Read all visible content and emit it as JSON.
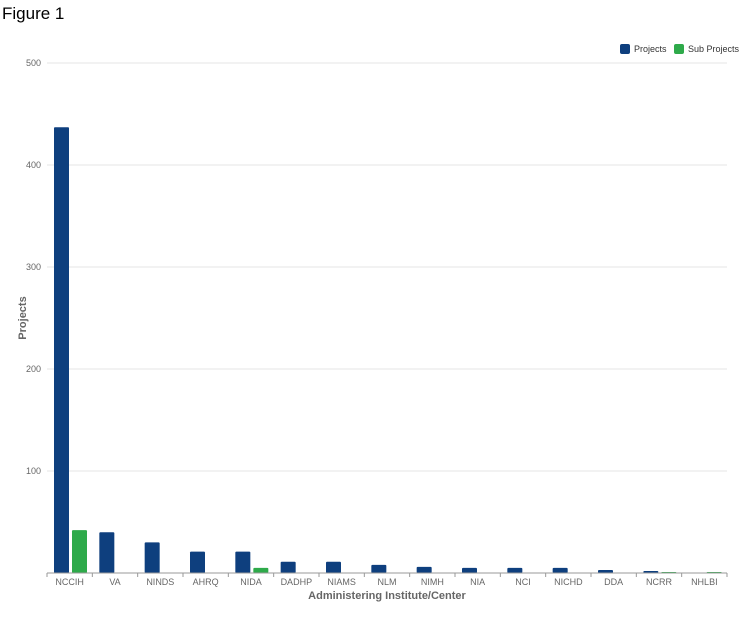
{
  "figure_label": "Figure 1",
  "chart_data": {
    "type": "bar",
    "xlabel": "Administering Institute/Center",
    "ylabel": "Projects",
    "ylim": [
      0,
      500
    ],
    "yticks": [
      0,
      100,
      200,
      300,
      400,
      500
    ],
    "grid": true,
    "legend_position": "top-right",
    "categories": [
      "NCCIH",
      "VA",
      "NINDS",
      "AHRQ",
      "NIDA",
      "DADHP",
      "NIAMS",
      "NLM",
      "NIMH",
      "NIA",
      "NCI",
      "NICHD",
      "DDA",
      "NCRR",
      "NHLBI"
    ],
    "series": [
      {
        "name": "Projects",
        "color": "#0e3f7e",
        "values": [
          437,
          40,
          30,
          21,
          21,
          11,
          11,
          8,
          6,
          5,
          5,
          5,
          3,
          2,
          0
        ]
      },
      {
        "name": "Sub Projects",
        "color": "#2eaa4a",
        "values": [
          42,
          0,
          0,
          0,
          5,
          0,
          0,
          0,
          0,
          0,
          0,
          0,
          0,
          1,
          1
        ]
      }
    ]
  }
}
